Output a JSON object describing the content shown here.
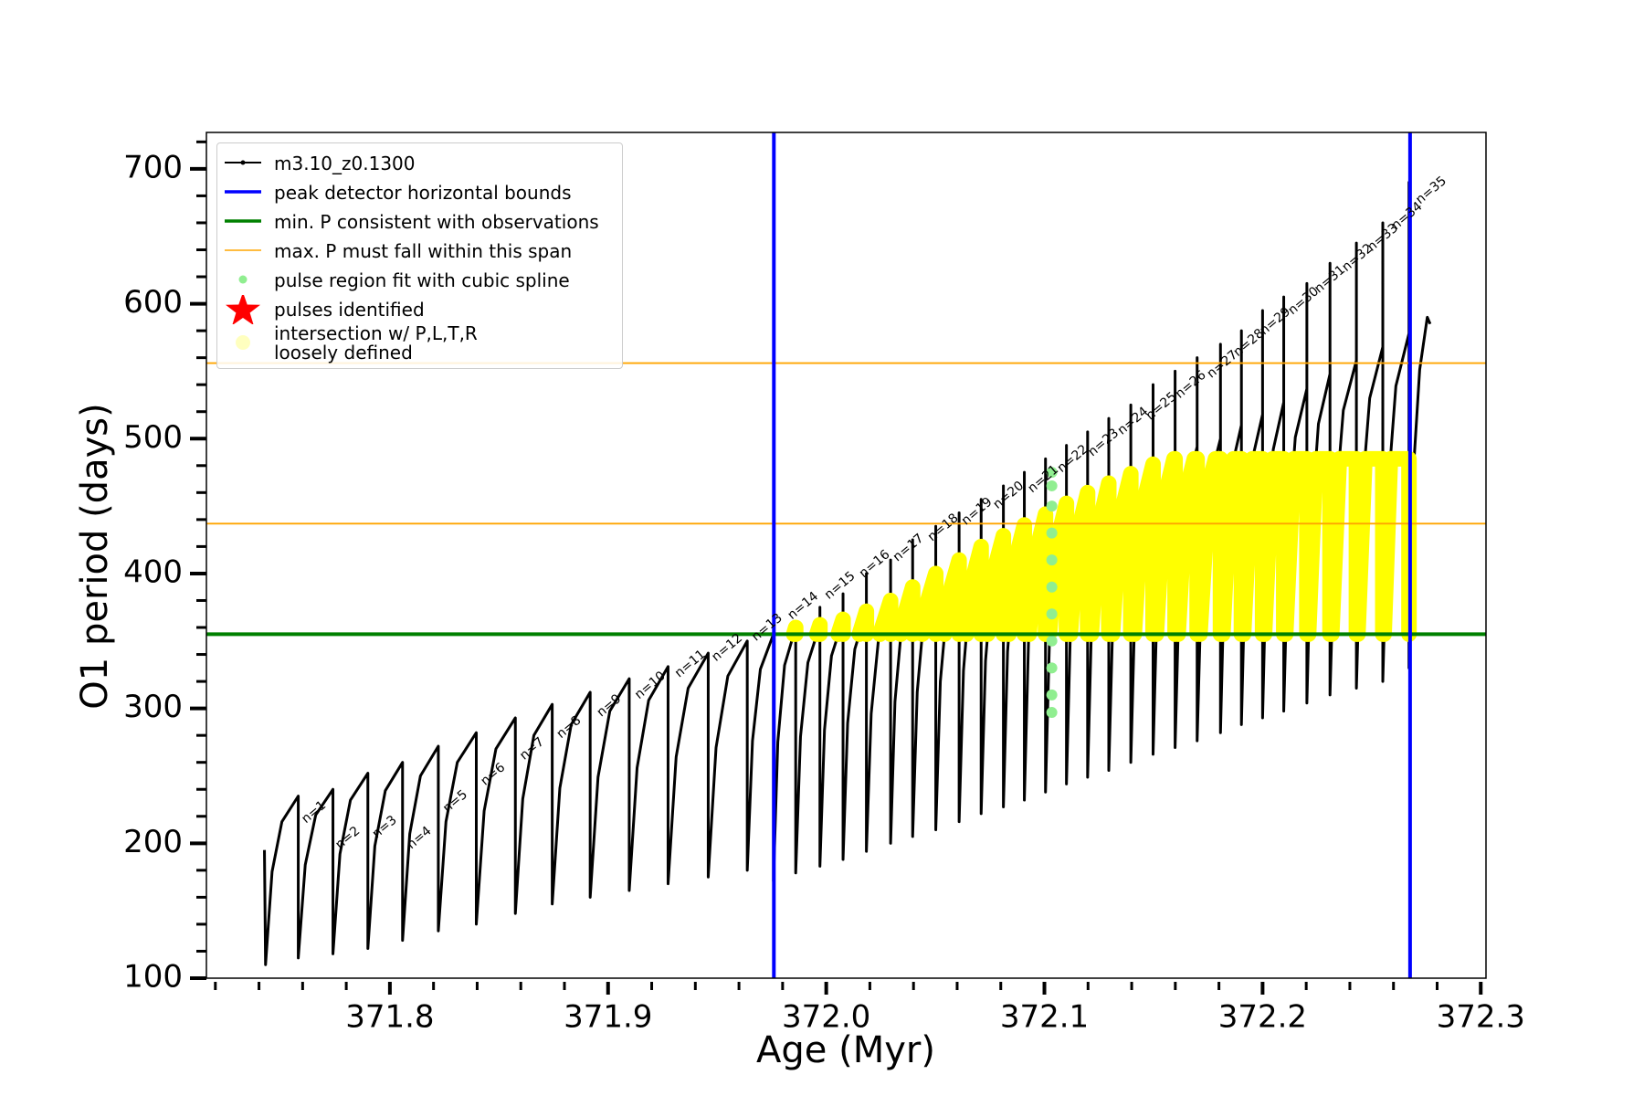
{
  "chart_data": {
    "type": "line",
    "xlabel": "Age (Myr)",
    "ylabel": "O1 period (days)",
    "xlim": [
      371.7159,
      372.3024
    ],
    "ylim": [
      100,
      727
    ],
    "xticks": [
      371.8,
      371.9,
      {
        "value": 372,
        "label": "372.0"
      },
      372.1,
      372.2,
      372.3
    ],
    "yticks": [
      100,
      200,
      300,
      400,
      500,
      600,
      700
    ],
    "xminorticks": [
      371.72,
      371.74,
      371.76,
      371.78,
      371.82,
      371.84,
      371.86,
      371.88,
      371.92,
      371.94,
      371.96,
      371.98,
      372.02,
      372.04,
      372.06,
      372.08,
      372.12,
      372.14,
      372.16,
      372.18,
      372.22,
      372.24,
      372.26,
      372.28
    ],
    "yminorticks": [
      120,
      140,
      160,
      180,
      220,
      240,
      260,
      280,
      320,
      340,
      360,
      380,
      420,
      440,
      460,
      480,
      520,
      540,
      560,
      580,
      620,
      640,
      660,
      680,
      720
    ],
    "legend": "upper left",
    "annotation_rotation": 40,
    "series": [
      {
        "name": "m3.10_z0.1300",
        "color": "#000000",
        "kind": "line",
        "x": [
          371.7425,
          371.743,
          371.746,
          371.7505,
          371.758,
          371.758,
          371.7612,
          371.766,
          371.7739,
          371.7739,
          371.7771,
          371.7819,
          371.7899,
          371.7899,
          371.7931,
          371.7979,
          371.8058,
          371.8058,
          371.8091,
          371.814,
          371.8222,
          371.8222,
          371.8257,
          371.8309,
          371.8396,
          371.8396,
          371.8432,
          371.8486,
          371.8575,
          371.8575,
          371.8609,
          371.866,
          371.8744,
          371.8744,
          371.8779,
          371.8831,
          371.8918,
          371.8918,
          371.8954,
          371.9008,
          371.9097,
          371.9097,
          371.9133,
          371.9186,
          371.9275,
          371.9275,
          371.9312,
          371.9367,
          371.9459,
          371.9459,
          371.9495,
          371.9549,
          371.9638,
          371.9638,
          371.9662,
          371.9698,
          371.9758,
          371.9758,
          371.9778,
          371.9809,
          371.986,
          371.986,
          371.986,
          371.9882,
          371.9916,
          371.9971,
          371.9971,
          371.9971,
          371.9992,
          372.0024,
          372.0077,
          372.0077,
          372.0077,
          372.0098,
          372.0131,
          372.0184,
          372.0184,
          372.0184,
          372.0206,
          372.024,
          372.0295,
          372.0295,
          372.0295,
          372.0315,
          372.0346,
          372.0396,
          372.0396,
          372.0396,
          372.0417,
          372.0449,
          372.0502,
          372.0502,
          372.0502,
          372.0523,
          372.0556,
          372.0609,
          372.0609,
          372.0609,
          372.0629,
          372.066,
          372.071,
          372.071,
          372.071,
          372.073,
          372.0761,
          372.0812,
          372.0812,
          372.0812,
          372.0831,
          372.086,
          372.0908,
          372.0908,
          372.0908,
          372.0927,
          372.0957,
          372.1005,
          372.1005,
          372.1005,
          372.1024,
          372.1053,
          372.1101,
          372.1101,
          372.1101,
          372.112,
          372.115,
          372.1198,
          372.1198,
          372.1198,
          372.1217,
          372.1247,
          372.1295,
          372.1295,
          372.1295,
          372.1315,
          372.1346,
          372.1396,
          372.1396,
          372.1396,
          372.1416,
          372.1447,
          372.1498,
          372.1498,
          372.1498,
          372.1518,
          372.1549,
          372.1599,
          372.1599,
          372.1599,
          372.1619,
          372.165,
          372.17,
          372.17,
          372.17,
          372.1721,
          372.1754,
          372.1807,
          372.1807,
          372.1807,
          372.1826,
          372.1855,
          372.1903,
          372.1903,
          372.1903,
          372.1922,
          372.1952,
          372.2,
          372.2,
          372.2,
          372.2019,
          372.2049,
          372.2097,
          372.2097,
          372.2097,
          372.2118,
          372.215,
          372.2203,
          372.2203,
          372.2203,
          372.2224,
          372.2256,
          372.2309,
          372.2309,
          372.2309,
          372.2333,
          372.237,
          372.243,
          372.243,
          372.243,
          372.2454,
          372.2491,
          372.2551,
          372.2551,
          372.2551,
          372.2575,
          372.2611,
          372.2671,
          372.2671,
          372.2671,
          372.269,
          372.272,
          372.2755,
          372.2768
        ],
        "y": [
          195,
          110,
          179,
          216,
          235,
          115,
          184,
          221,
          240,
          118,
          192,
          232,
          252,
          122,
          198,
          239,
          260,
          128,
          207,
          250,
          272,
          135,
          216,
          260,
          282,
          140,
          224,
          270,
          293,
          148,
          233,
          280,
          303,
          155,
          241,
          288,
          312,
          160,
          249,
          298,
          322,
          165,
          256,
          306,
          331,
          170,
          264,
          315,
          341,
          175,
          271,
          324,
          350,
          180,
          276,
          329,
          355,
          172,
          275,
          332,
          360,
          362,
          178,
          279,
          334,
          362,
          375,
          183,
          284,
          339,
          366,
          385,
          188,
          289,
          344,
          372,
          400,
          194,
          296,
          352,
          380,
          410,
          200,
          305,
          362,
          390,
          425,
          205,
          312,
          371,
          400,
          435,
          210,
          320,
          380,
          410,
          445,
          216,
          328,
          389,
          420,
          455,
          222,
          335,
          397,
          428,
          465,
          227,
          342,
          405,
          436,
          475,
          232,
          349,
          412,
          444,
          485,
          238,
          356,
          420,
          452,
          495,
          244,
          363,
          428,
          460,
          505,
          249,
          369,
          434,
          467,
          515,
          254,
          375,
          441,
          474,
          525,
          260,
          382,
          448,
          481,
          540,
          266,
          388,
          455,
          488,
          550,
          271,
          394,
          461,
          494,
          560,
          276,
          399,
          466,
          500,
          570,
          282,
          407,
          476,
          510,
          580,
          288,
          415,
          484,
          518,
          595,
          293,
          422,
          492,
          527,
          605,
          298,
          429,
          501,
          537,
          615,
          304,
          438,
          511,
          548,
          630,
          310,
          446,
          521,
          558,
          645,
          315,
          454,
          530,
          568,
          660,
          320,
          462,
          539,
          578,
          690,
          330,
          473,
          551,
          590,
          585
        ]
      },
      {
        "name": "peak detector horizontal bounds",
        "color": "#0000ff",
        "kind": "vline",
        "x": [
          371.976,
          372.2676
        ]
      },
      {
        "name": "min. P consistent with observations",
        "color": "#008000",
        "kind": "hline",
        "y": [
          355
        ]
      },
      {
        "name": "max. P must fall within this span",
        "color": "#ffa500",
        "kind": "hline",
        "y": [
          437,
          556
        ]
      },
      {
        "name": "pulse region fit with cubic spline",
        "color": "#90ee90",
        "kind": "points",
        "x": [
          372.1034,
          372.1034,
          372.1034,
          372.1034,
          372.1034,
          372.1034,
          372.1034,
          372.1034,
          372.1034,
          372.1034,
          372.1034
        ],
        "y": [
          297,
          310,
          330,
          350,
          370,
          390,
          410,
          430,
          450,
          465,
          475
        ]
      },
      {
        "name": "pulses identified",
        "color": "#ff0000",
        "kind": "star"
      },
      {
        "name": "intersection w/ P,L,T,R\nloosely defined",
        "color": "#ffff00",
        "kind": "band",
        "x": [
          371.9851,
          371.986,
          371.986,
          null,
          371.9957,
          371.9971,
          371.9971,
          null,
          372.0055,
          372.0077,
          372.0077,
          null,
          372.0152,
          372.0184,
          372.0184,
          null,
          372.0246,
          372.0295,
          372.0295,
          null,
          372.0342,
          372.0346,
          372.0396,
          372.0396,
          null,
          372.044,
          372.0449,
          372.0502,
          372.0502,
          null,
          372.0542,
          372.0556,
          372.0609,
          372.0609,
          null,
          372.0643,
          372.066,
          372.071,
          372.071,
          null,
          372.074,
          372.0761,
          372.0812,
          372.0812,
          null,
          372.0837,
          372.086,
          372.0908,
          372.0908,
          null,
          372.093,
          372.0957,
          372.1005,
          372.1005,
          null,
          372.1024,
          372.1053,
          372.1101,
          372.1101,
          null,
          372.1119,
          372.115,
          372.1198,
          372.1198,
          null,
          372.1215,
          372.1247,
          372.1295,
          372.1295,
          null,
          372.1312,
          372.1346,
          372.1396,
          372.1396,
          null,
          372.1412,
          372.1447,
          372.1498,
          372.1498,
          null,
          372.1513,
          372.1549,
          372.1594,
          372.1599,
          372.1599,
          null,
          372.1613,
          372.165,
          372.1687,
          372.17,
          372.17,
          null,
          372.1713,
          372.1754,
          372.1784,
          372.1807,
          372.1807,
          null,
          372.1818,
          372.1855,
          372.1867,
          372.1903,
          372.1903,
          null,
          372.1913,
          372.1953,
          372.2,
          372.2,
          null,
          372.2009,
          372.2046,
          372.2097,
          372.2097,
          null,
          372.2106,
          372.2143,
          372.2203,
          372.2203,
          null,
          372.2211,
          372.2244,
          372.2309,
          372.2309,
          null,
          372.2317,
          372.2352,
          372.243,
          372.243,
          null,
          372.2437,
          372.2469,
          372.2551,
          372.2551,
          null,
          372.2557,
          372.2586,
          372.2671,
          372.2671
        ],
        "y": [
          355,
          360,
          355,
          null,
          355,
          362,
          355,
          null,
          355,
          366,
          355,
          null,
          355,
          372,
          355,
          null,
          355,
          380,
          355,
          null,
          355,
          362,
          390,
          355,
          null,
          355,
          371,
          400,
          355,
          null,
          355,
          380,
          410,
          355,
          null,
          355,
          389,
          420,
          355,
          null,
          355,
          397,
          428,
          355,
          null,
          355,
          405,
          436,
          355,
          null,
          355,
          412,
          444,
          355,
          null,
          356,
          420,
          452,
          355,
          null,
          355,
          428,
          460,
          355,
          null,
          355,
          434,
          467,
          355,
          null,
          355,
          441,
          474,
          355,
          null,
          355,
          448,
          481,
          355,
          null,
          355,
          455,
          485,
          485,
          355,
          null,
          355,
          461,
          485,
          485,
          355,
          null,
          355,
          466,
          485,
          485,
          355,
          null,
          355,
          476,
          485,
          485,
          355,
          null,
          355,
          485,
          485,
          355,
          null,
          355,
          485,
          485,
          355,
          null,
          355,
          485,
          485,
          355,
          null,
          355,
          485,
          485,
          355,
          null,
          355,
          485,
          485,
          355,
          null,
          355,
          485,
          485,
          355,
          null,
          355,
          485,
          485,
          355
        ]
      }
    ],
    "annotations": [
      {
        "text": "n=1",
        "x": 371.7652,
        "y": 223
      },
      {
        "text": "n=2",
        "x": 371.7807,
        "y": 204
      },
      {
        "text": "n=3",
        "x": 371.7976,
        "y": 212
      },
      {
        "text": "n=4",
        "x": 371.8135,
        "y": 204
      },
      {
        "text": "n=5",
        "x": 371.83,
        "y": 231
      },
      {
        "text": "n=6",
        "x": 371.8473,
        "y": 251
      },
      {
        "text": "n=7",
        "x": 371.8652,
        "y": 270
      },
      {
        "text": "n=8",
        "x": 371.8821,
        "y": 286
      },
      {
        "text": "n=9",
        "x": 371.9005,
        "y": 302
      },
      {
        "text": "n=10",
        "x": 371.9193,
        "y": 317
      },
      {
        "text": "n=11",
        "x": 371.9377,
        "y": 333
      },
      {
        "text": "n=12",
        "x": 371.9546,
        "y": 345
      },
      {
        "text": "n=13",
        "x": 371.9729,
        "y": 360
      },
      {
        "text": "n=14",
        "x": 371.9894,
        "y": 376
      },
      {
        "text": "n=15",
        "x": 372.0063,
        "y": 391
      },
      {
        "text": "n=16",
        "x": 372.0222,
        "y": 407
      },
      {
        "text": "n=17",
        "x": 372.0377,
        "y": 419
      },
      {
        "text": "n=18",
        "x": 372.0536,
        "y": 434
      },
      {
        "text": "n=19",
        "x": 372.0691,
        "y": 446
      },
      {
        "text": "n=20",
        "x": 372.0836,
        "y": 458
      },
      {
        "text": "n=21",
        "x": 372.0995,
        "y": 470
      },
      {
        "text": "n=22",
        "x": 372.113,
        "y": 485
      },
      {
        "text": "n=23",
        "x": 372.1271,
        "y": 497
      },
      {
        "text": "n=24",
        "x": 372.1406,
        "y": 513
      },
      {
        "text": "n=25",
        "x": 372.1536,
        "y": 524
      },
      {
        "text": "n=26",
        "x": 372.1671,
        "y": 540
      },
      {
        "text": "n=27",
        "x": 372.1816,
        "y": 555
      },
      {
        "text": "n=28",
        "x": 372.1937,
        "y": 571
      },
      {
        "text": "n=29",
        "x": 372.2058,
        "y": 587
      },
      {
        "text": "n=30",
        "x": 372.2188,
        "y": 602
      },
      {
        "text": "n=31",
        "x": 372.2309,
        "y": 618
      },
      {
        "text": "n=32",
        "x": 372.2435,
        "y": 634
      },
      {
        "text": "n=33",
        "x": 372.2551,
        "y": 649
      },
      {
        "text": "n=34",
        "x": 372.2662,
        "y": 665
      },
      {
        "text": "n=35",
        "x": 372.2773,
        "y": 684
      }
    ]
  }
}
